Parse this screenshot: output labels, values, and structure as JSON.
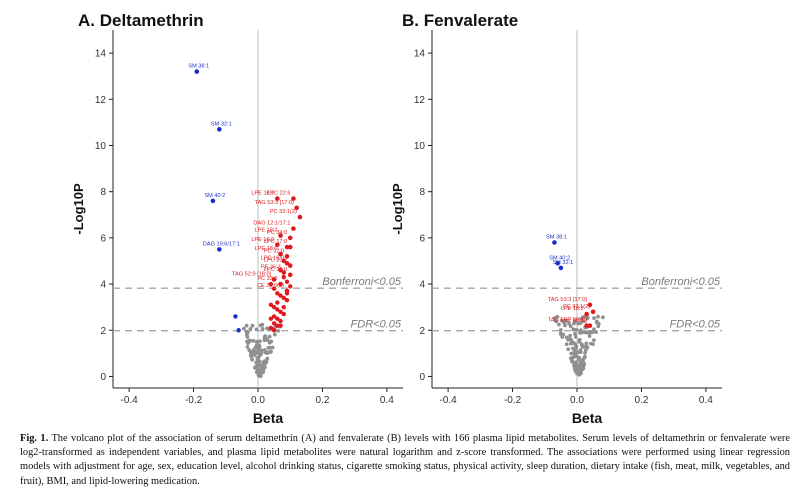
{
  "chart_data": [
    {
      "type": "scatter",
      "title": "A. Deltamethrin",
      "xlabel": "Beta",
      "ylabel": "-Log10P",
      "xlim": [
        -0.45,
        0.45
      ],
      "ylim": [
        -0.5,
        15
      ],
      "x_ticks": [
        "-0.4",
        "-0.2",
        "0.0",
        "0.2",
        "0.4"
      ],
      "y_ticks": [
        "0",
        "2",
        "4",
        "6",
        "8",
        "10",
        "12",
        "14"
      ],
      "thresholds": [
        {
          "label": "Bonferroni<0.05",
          "y": 3.82
        },
        {
          "label": "FDR<0.05",
          "y": 1.98
        }
      ],
      "colors": {
        "positive": "#e0191f",
        "negative": "#1a2fc9",
        "ns": "#909090"
      },
      "labeled_points": [
        {
          "label": "SM 38:1",
          "x": -0.19,
          "y": 13.2,
          "group": "negative"
        },
        {
          "label": "SM 32:1",
          "x": -0.12,
          "y": 10.7,
          "group": "negative"
        },
        {
          "label": "SM 40:2",
          "x": -0.14,
          "y": 7.6,
          "group": "negative"
        },
        {
          "label": "DAG 19:6/17:1",
          "x": -0.12,
          "y": 5.5,
          "group": "negative"
        },
        {
          "label": "LPE 18:1",
          "x": 0.06,
          "y": 7.7,
          "group": "positive"
        },
        {
          "label": "LPC 22:6",
          "x": 0.11,
          "y": 7.7,
          "group": "positive"
        },
        {
          "label": "TAG 53:3 [17:0]",
          "x": 0.12,
          "y": 7.3,
          "group": "positive"
        },
        {
          "label": "PC 33:1(2)",
          "x": 0.13,
          "y": 6.9,
          "group": "positive"
        },
        {
          "label": "DAG 12:1/17:1",
          "x": 0.11,
          "y": 6.4,
          "group": "positive"
        },
        {
          "label": "PC 34:0",
          "x": 0.1,
          "y": 6.0,
          "group": "positive"
        },
        {
          "label": "LPE 18:2",
          "x": 0.07,
          "y": 6.1,
          "group": "positive"
        },
        {
          "label": "LPE 16:0",
          "x": 0.06,
          "y": 5.7,
          "group": "positive"
        },
        {
          "label": "LPC 17:0",
          "x": 0.1,
          "y": 5.6,
          "group": "positive"
        },
        {
          "label": "LPE 18:0",
          "x": 0.07,
          "y": 5.3,
          "group": "positive"
        },
        {
          "label": "PC 32:0",
          "x": 0.09,
          "y": 5.2,
          "group": "positive"
        },
        {
          "label": "LPC 16:0",
          "x": 0.09,
          "y": 4.9,
          "group": "positive"
        },
        {
          "label": "LPC 20:2",
          "x": 0.1,
          "y": 4.8,
          "group": "positive"
        },
        {
          "label": "PE 36:3",
          "x": 0.08,
          "y": 4.5,
          "group": "positive"
        },
        {
          "label": "LPC 20:0",
          "x": 0.1,
          "y": 4.4,
          "group": "positive"
        },
        {
          "label": "TAG 52:9 [18:0]",
          "x": 0.05,
          "y": 4.2,
          "group": "positive"
        },
        {
          "label": "PC 33:2",
          "x": 0.07,
          "y": 4.0,
          "group": "positive"
        },
        {
          "label": "CE 20:0(2)",
          "x": 0.09,
          "y": 3.7,
          "group": "positive"
        }
      ],
      "extra_negative": [
        [
          -0.07,
          2.6
        ],
        [
          -0.06,
          2.0
        ]
      ],
      "extra_positive": [
        [
          0.04,
          4.0
        ],
        [
          0.05,
          3.8
        ],
        [
          0.06,
          3.6
        ],
        [
          0.07,
          3.5
        ],
        [
          0.08,
          3.4
        ],
        [
          0.09,
          3.3
        ],
        [
          0.04,
          3.1
        ],
        [
          0.05,
          3.0
        ],
        [
          0.06,
          2.9
        ],
        [
          0.07,
          2.8
        ],
        [
          0.08,
          2.7
        ],
        [
          0.05,
          2.6
        ],
        [
          0.06,
          2.5
        ],
        [
          0.07,
          2.4
        ],
        [
          0.05,
          2.3
        ],
        [
          0.06,
          2.2
        ],
        [
          0.04,
          2.1
        ],
        [
          0.05,
          2.0
        ],
        [
          0.07,
          2.2
        ],
        [
          0.08,
          3.0
        ],
        [
          0.09,
          3.6
        ],
        [
          0.1,
          3.9
        ],
        [
          0.06,
          3.2
        ],
        [
          0.04,
          2.5
        ],
        [
          0.08,
          4.3
        ],
        [
          0.09,
          4.1
        ],
        [
          0.07,
          4.6
        ],
        [
          0.08,
          5.0
        ],
        [
          0.09,
          5.6
        ]
      ]
    },
    {
      "type": "scatter",
      "title": "B. Fenvalerate",
      "xlabel": "Beta",
      "ylabel": "-Log10P",
      "xlim": [
        -0.45,
        0.45
      ],
      "ylim": [
        -0.5,
        15
      ],
      "x_ticks": [
        "-0.4",
        "-0.2",
        "0.0",
        "0.2",
        "0.4"
      ],
      "y_ticks": [
        "0",
        "2",
        "4",
        "6",
        "8",
        "10",
        "12",
        "14"
      ],
      "thresholds": [
        {
          "label": "Bonferroni<0.05",
          "y": 3.82
        },
        {
          "label": "FDR<0.05",
          "y": 1.98
        }
      ],
      "colors": {
        "positive": "#e0191f",
        "negative": "#1a2fc9",
        "ns": "#909090"
      },
      "labeled_points": [
        {
          "label": "SM 38:1",
          "x": -0.07,
          "y": 5.8,
          "group": "negative"
        },
        {
          "label": "SM 40:2",
          "x": -0.06,
          "y": 4.9,
          "group": "negative"
        },
        {
          "label": "SM 32:1",
          "x": -0.05,
          "y": 4.7,
          "group": "negative"
        },
        {
          "label": "TAG 53:3 [17:0]",
          "x": 0.04,
          "y": 3.1,
          "group": "positive"
        },
        {
          "label": "PC 33:1(2)",
          "x": 0.05,
          "y": 2.8,
          "group": "positive"
        },
        {
          "label": "LPE 18:2",
          "x": 0.03,
          "y": 2.7,
          "group": "positive"
        },
        {
          "label": "LPE 18:1",
          "x": 0.03,
          "y": 2.2,
          "group": "positive"
        },
        {
          "label": "TAG 55:7 [18:0]",
          "x": 0.04,
          "y": 2.2,
          "group": "positive"
        }
      ],
      "extra_negative": [],
      "extra_positive": []
    }
  ],
  "caption": {
    "label": "Fig. 1.",
    "text": "The volcano plot of the association of serum deltamethrin (A) and fenvalerate (B) levels with 166 plasma lipid metabolites. Serum levels of deltamethrin or fenvalerate were log2-transformed as independent variables, and plasma lipid metabolites were natural logarithm and z-score transformed. The associations were performed using linear regression models with adjustment for age, sex, education level, alcohol drinking status, cigarette smoking status, physical activity, sleep duration, dietary intake (fish, meat, milk, vegetables, and fruit), BMI, and lipid-lowering medication."
  }
}
